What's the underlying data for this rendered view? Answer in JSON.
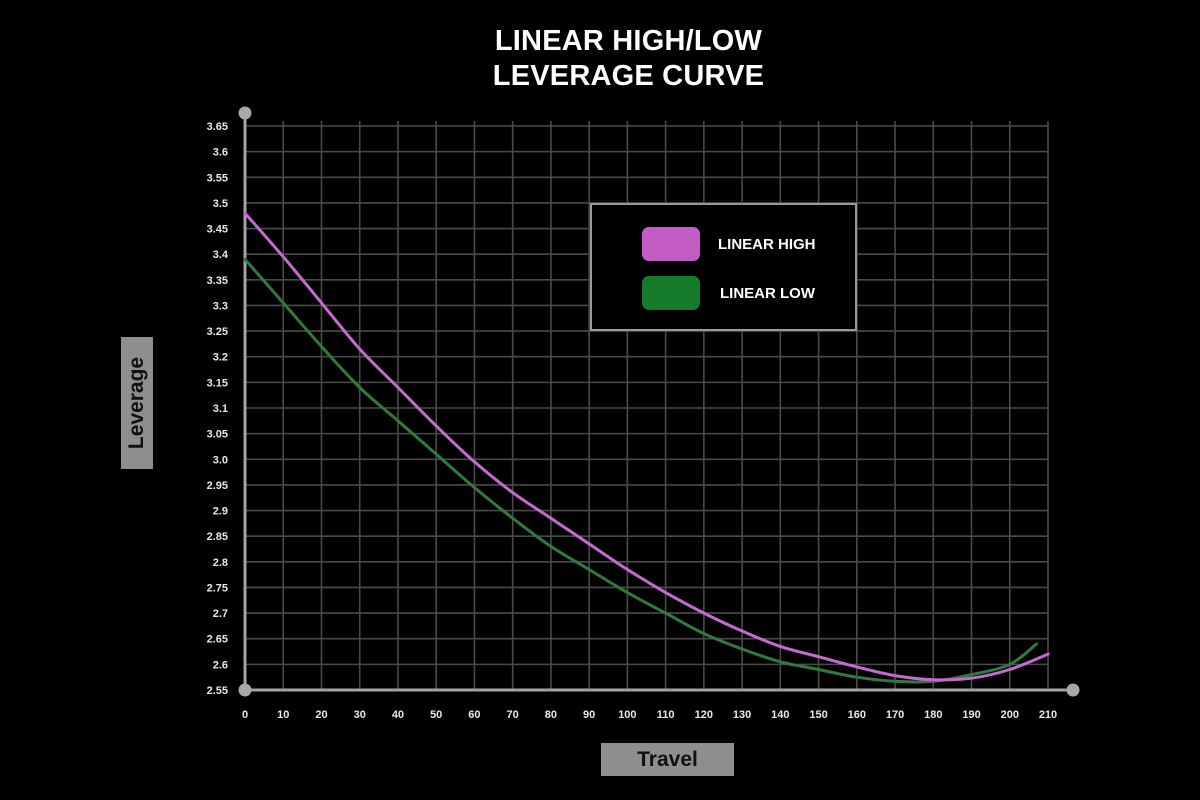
{
  "title": {
    "line1": "LINEAR HIGH/LOW",
    "line2": "LEVERAGE CURVE"
  },
  "axes": {
    "xlabel": "Travel",
    "ylabel": "Leverage"
  },
  "legend": {
    "items": [
      {
        "label": "LINEAR HIGH",
        "color": "#c25dc5"
      },
      {
        "label": "LINEAR LOW",
        "color": "#157a2a"
      }
    ]
  },
  "chart_data": {
    "type": "line",
    "title": "LINEAR HIGH/LOW LEVERAGE CURVE",
    "xlabel": "Travel",
    "ylabel": "Leverage",
    "xlim": [
      0,
      210
    ],
    "ylim": [
      2.55,
      3.65
    ],
    "grid": true,
    "legend_position": "upper center (inside plot)",
    "x_ticks": [
      0,
      10,
      20,
      30,
      40,
      50,
      60,
      70,
      80,
      90,
      100,
      110,
      120,
      130,
      140,
      150,
      160,
      170,
      180,
      190,
      200,
      210
    ],
    "y_ticks": [
      "2.55",
      "2.6",
      "2.65",
      "2.7",
      "2.75",
      "2.8",
      "2.85",
      "2.9",
      "2.95",
      "3.0",
      "3.05",
      "3.1",
      "3.15",
      "3.2",
      "3.25",
      "3.3",
      "3.35",
      "3.4",
      "3.45",
      "3.5",
      "3.55",
      "3.6",
      "3.65"
    ],
    "series": [
      {
        "name": "LINEAR HIGH",
        "color": "#c25dc5",
        "x": [
          0,
          10,
          20,
          30,
          40,
          50,
          60,
          70,
          80,
          90,
          100,
          110,
          120,
          130,
          140,
          150,
          160,
          170,
          180,
          190,
          200,
          210
        ],
        "y": [
          3.48,
          3.395,
          3.305,
          3.215,
          3.14,
          3.065,
          2.995,
          2.935,
          2.885,
          2.835,
          2.785,
          2.74,
          2.7,
          2.665,
          2.635,
          2.615,
          2.595,
          2.578,
          2.57,
          2.573,
          2.59,
          2.62
        ]
      },
      {
        "name": "LINEAR LOW",
        "color": "#157a2a",
        "x": [
          0,
          10,
          20,
          30,
          40,
          50,
          60,
          70,
          80,
          90,
          100,
          110,
          120,
          130,
          140,
          150,
          160,
          170,
          180,
          190,
          200,
          207
        ],
        "y": [
          3.39,
          3.305,
          3.22,
          3.14,
          3.075,
          3.01,
          2.945,
          2.885,
          2.83,
          2.785,
          2.74,
          2.7,
          2.66,
          2.63,
          2.605,
          2.59,
          2.575,
          2.567,
          2.567,
          2.58,
          2.6,
          2.64
        ]
      }
    ]
  }
}
